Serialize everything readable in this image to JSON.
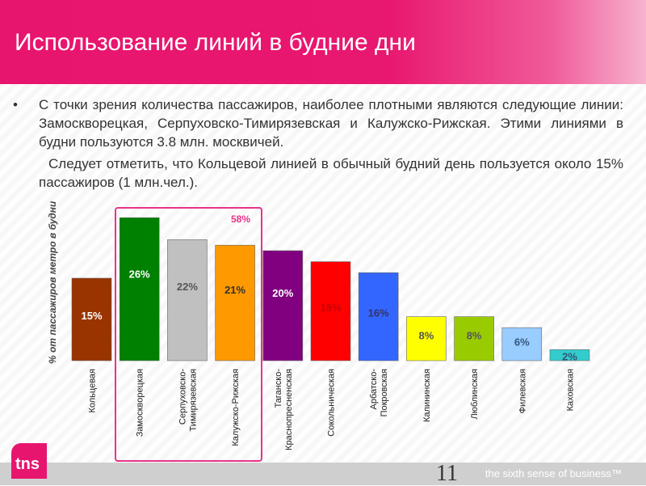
{
  "title": "Использование линий в будние дни",
  "paragraphs": [
    "С точки зрения количества пассажиров, наиболее плотными являются следующие линии: Замоскворецкая, Серпуховско-Тимирязевская и Калужско-Рижская. Этими линиями в будни пользуются 3.8 млн. москвичей.",
    "Следует отметить, что Кольцевой линией в обычный будний день пользуется около 15% пассажиров (1 млн.чел.)."
  ],
  "bullet": "•",
  "highlight_total": "58%",
  "footer": {
    "slogan": "the sixth sense of business™",
    "page": "11",
    "logo": "tns"
  },
  "chart_data": {
    "type": "bar",
    "ylabel": "% от пассажиров метро в будни",
    "categories": [
      "Кольцевая",
      "Замоскворецкая",
      "Серпуховско-Тимирязевская",
      "Калужско-Рижская",
      "Таганско-Краснопресненская",
      "Сокольническая",
      "Арбатско-Покровская",
      "Калининская",
      "Люблинская",
      "Филевская",
      "Каховская"
    ],
    "category_lines": [
      [
        "Кольцевая"
      ],
      [
        "Замоскворецкая"
      ],
      [
        "Серпуховско-",
        "Тимирязевская"
      ],
      [
        "Калужско-Рижская"
      ],
      [
        "Таганско-",
        "Краснопресненская"
      ],
      [
        "Сокольническая"
      ],
      [
        "Арбатско-",
        "Покровская"
      ],
      [
        "Калининская"
      ],
      [
        "Люблинская"
      ],
      [
        "Филевская"
      ],
      [
        "Каховская"
      ]
    ],
    "values": [
      15,
      26,
      22,
      21,
      20,
      18,
      16,
      8,
      8,
      6,
      2
    ],
    "labels": [
      "15%",
      "26%",
      "22%",
      "21%",
      "20%",
      "18%",
      "16%",
      "8%",
      "8%",
      "6%",
      "2%"
    ],
    "colors": [
      "#993300",
      "#008000",
      "#c0c0c0",
      "#ff9900",
      "#800080",
      "#ff0000",
      "#3366ff",
      "#ffff00",
      "#99cc00",
      "#99ccff",
      "#33cccc"
    ],
    "label_colors": [
      "#ffffff",
      "#ffffff",
      "#555555",
      "#333333",
      "#ffffff",
      "#cc0000",
      "#333366",
      "#555555",
      "#555555",
      "#335577",
      "#335577"
    ],
    "grid": false
  }
}
